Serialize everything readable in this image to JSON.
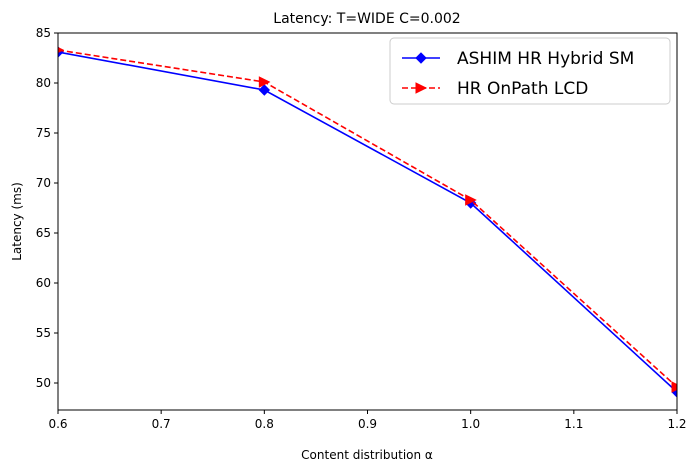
{
  "chart_data": {
    "type": "line",
    "title": "Latency: T=WIDE C=0.002",
    "xlabel": "Content distribution α",
    "ylabel": "Latency (ms)",
    "xlim": [
      0.6,
      1.2
    ],
    "ylim": [
      47.3,
      85
    ],
    "xticks": [
      0.6,
      0.7,
      0.8,
      0.9,
      1.0,
      1.1,
      1.2
    ],
    "xtick_labels": [
      "0.6",
      "0.7",
      "0.8",
      "0.9",
      "1.0",
      "1.1",
      "1.2"
    ],
    "yticks": [
      50,
      55,
      60,
      65,
      70,
      75,
      80,
      85
    ],
    "ytick_labels": [
      "50",
      "55",
      "60",
      "65",
      "70",
      "75",
      "80",
      "85"
    ],
    "grid": false,
    "legend_position": "top-right",
    "series": [
      {
        "name": "ASHIM HR Hybrid SM",
        "color": "#0000ff",
        "line_style": "solid",
        "marker": "diamond",
        "x": [
          0.6,
          0.8,
          1.0,
          1.2
        ],
        "y": [
          83.1,
          79.3,
          68.0,
          49.1
        ]
      },
      {
        "name": "HR OnPath LCD",
        "color": "#ff0000",
        "line_style": "dashed",
        "marker": "triangle-right",
        "x": [
          0.6,
          0.8,
          1.0,
          1.2
        ],
        "y": [
          83.3,
          80.1,
          68.3,
          49.6
        ]
      }
    ]
  }
}
